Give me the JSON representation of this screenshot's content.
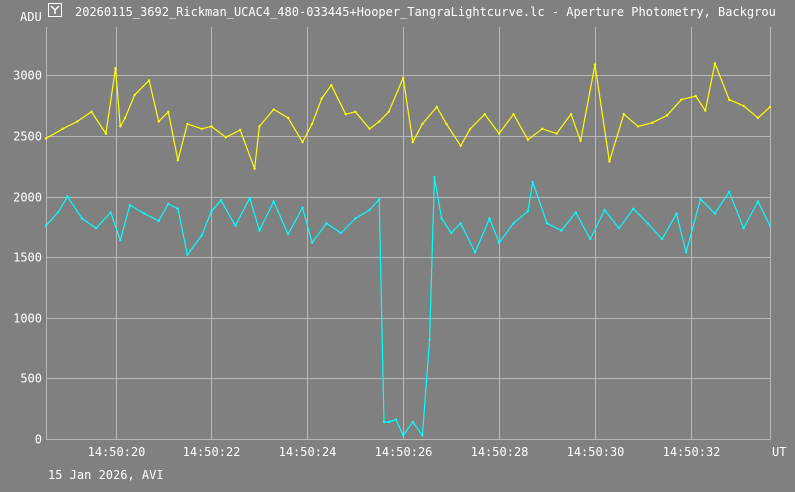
{
  "window": {
    "title": "20260115_3692_Rickman_UCAC4_480-033445+Hooper_TangraLightcurve.lc - Aperture Photometry, Backgrou"
  },
  "footer": {
    "caption": "15 Jan 2026, AVI"
  },
  "colors": {
    "background": "#808080",
    "grid": "#b8b8b8",
    "text": "#ffffff",
    "target": "#ffff00",
    "comparison": "#00ffff"
  },
  "chart_data": {
    "type": "line",
    "ylabel": "ADU",
    "xlabel": "UT",
    "ylim": [
      0,
      3400
    ],
    "xlim": [
      "14:50:18.55",
      "14:50:33.65"
    ],
    "yticks": [
      {
        "value": 0,
        "label": "0"
      },
      {
        "value": 500,
        "label": "500"
      },
      {
        "value": 1000,
        "label": "1000"
      },
      {
        "value": 1500,
        "label": "1500"
      },
      {
        "value": 2000,
        "label": "2000"
      },
      {
        "value": 2500,
        "label": "2500"
      },
      {
        "value": 3000,
        "label": "3000"
      }
    ],
    "xticks": [
      {
        "value": 20,
        "label": "14:50:20"
      },
      {
        "value": 22,
        "label": "14:50:22"
      },
      {
        "value": 24,
        "label": "14:50:24"
      },
      {
        "value": 26,
        "label": "14:50:26"
      },
      {
        "value": 28,
        "label": "14:50:28"
      },
      {
        "value": 30,
        "label": "14:50:30"
      },
      {
        "value": 32,
        "label": "14:50:32"
      }
    ],
    "grid": true,
    "series": [
      {
        "color": "#ffff00",
        "x": [
          18.55,
          18.9,
          19.2,
          19.5,
          19.8,
          20.0,
          20.1,
          20.2,
          20.4,
          20.7,
          20.9,
          21.1,
          21.3,
          21.5,
          21.8,
          22.0,
          22.3,
          22.6,
          22.9,
          23.0,
          23.3,
          23.6,
          23.9,
          24.1,
          24.3,
          24.5,
          24.8,
          25.0,
          25.3,
          25.5,
          25.7,
          26.0,
          26.2,
          26.4,
          26.7,
          26.9,
          27.2,
          27.4,
          27.7,
          28.0,
          28.3,
          28.6,
          28.9,
          29.2,
          29.5,
          29.7,
          30.0,
          30.3,
          30.6,
          30.9,
          31.2,
          31.5,
          31.8,
          32.1,
          32.3,
          32.5,
          32.8,
          33.1,
          33.4,
          33.65
        ],
        "y": [
          2480,
          2560,
          2620,
          2700,
          2520,
          3060,
          2580,
          2650,
          2840,
          2960,
          2620,
          2700,
          2300,
          2600,
          2560,
          2580,
          2490,
          2550,
          2230,
          2580,
          2720,
          2650,
          2450,
          2600,
          2810,
          2920,
          2680,
          2700,
          2560,
          2620,
          2700,
          2980,
          2450,
          2600,
          2740,
          2600,
          2420,
          2560,
          2680,
          2520,
          2680,
          2470,
          2560,
          2520,
          2680,
          2460,
          3090,
          2290,
          2680,
          2580,
          2610,
          2670,
          2800,
          2830,
          2710,
          3100,
          2800,
          2750,
          2650,
          2740
        ]
      },
      {
        "color": "#00ffff",
        "x": [
          18.55,
          18.8,
          19.0,
          19.3,
          19.6,
          19.9,
          20.1,
          20.3,
          20.6,
          20.9,
          21.1,
          21.3,
          21.5,
          21.8,
          22.0,
          22.2,
          22.5,
          22.8,
          23.0,
          23.3,
          23.6,
          23.9,
          24.1,
          24.4,
          24.7,
          25.0,
          25.3,
          25.5,
          25.6,
          25.7,
          25.85,
          26.0,
          26.2,
          26.4,
          26.55,
          26.65,
          26.8,
          27.0,
          27.2,
          27.5,
          27.8,
          28.0,
          28.3,
          28.6,
          28.7,
          29.0,
          29.3,
          29.6,
          29.9,
          30.2,
          30.5,
          30.8,
          31.1,
          31.4,
          31.7,
          31.9,
          32.2,
          32.5,
          32.8,
          33.1,
          33.4,
          33.65
        ],
        "y": [
          1760,
          1870,
          2000,
          1820,
          1740,
          1870,
          1640,
          1930,
          1860,
          1800,
          1940,
          1900,
          1520,
          1680,
          1880,
          1970,
          1760,
          1990,
          1720,
          1960,
          1690,
          1910,
          1620,
          1780,
          1700,
          1820,
          1890,
          1980,
          140,
          140,
          160,
          30,
          140,
          30,
          820,
          2160,
          1820,
          1700,
          1780,
          1540,
          1820,
          1620,
          1780,
          1880,
          2120,
          1780,
          1720,
          1870,
          1650,
          1890,
          1740,
          1900,
          1780,
          1650,
          1860,
          1540,
          1980,
          1860,
          2040,
          1740,
          1960,
          1760
        ]
      }
    ]
  }
}
